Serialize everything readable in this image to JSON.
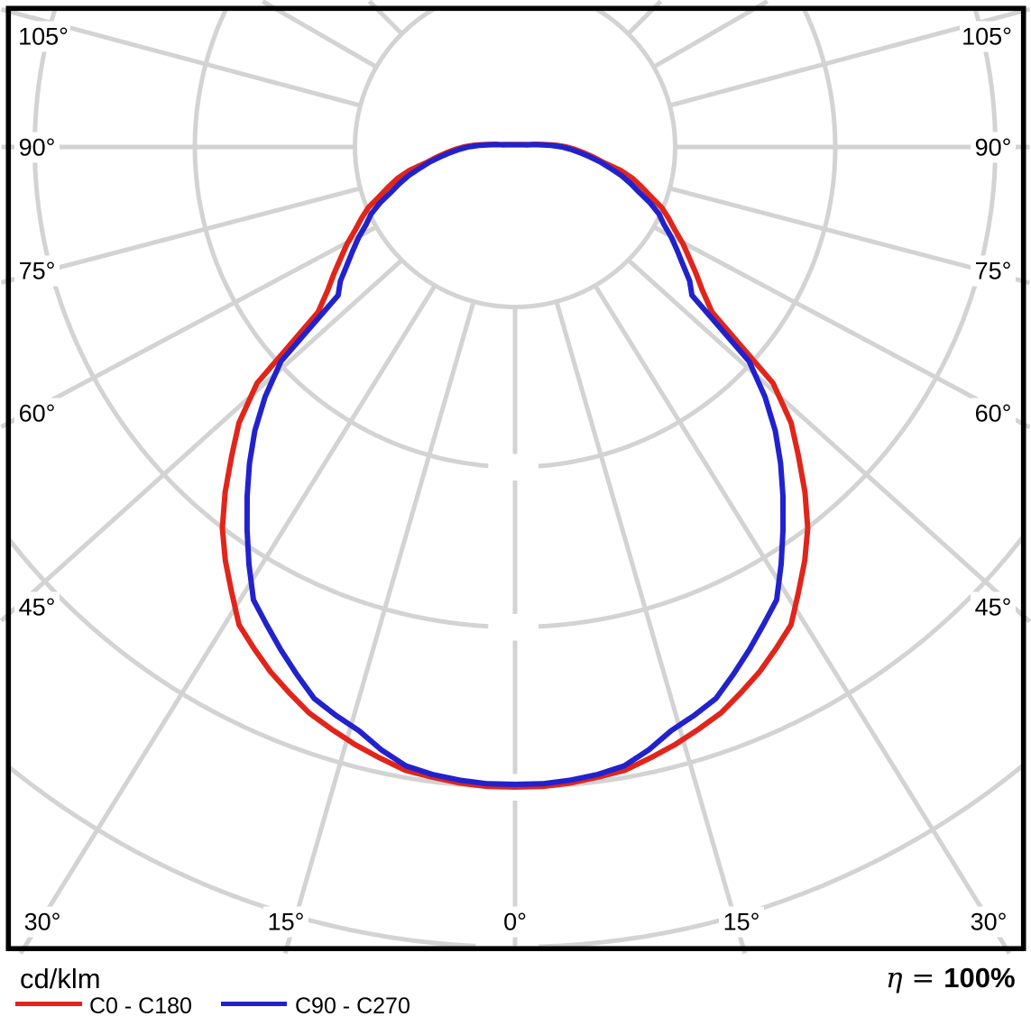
{
  "chart_data": {
    "type": "polar",
    "unit_label": "cd/klm",
    "efficiency": "η = 100%",
    "gamma_start_deg": 0,
    "gamma_end_deg": 102.5,
    "gamma_step_deg": 2.5,
    "symmetric": true,
    "grid": {
      "ray_step_deg": 15,
      "ring_count": 5,
      "color": "#d3d3d3"
    },
    "axis_labels": {
      "left": [
        "105°",
        "90°",
        "75°",
        "60°",
        "45°"
      ],
      "right": [
        "105°",
        "90°",
        "75°",
        "60°",
        "45°"
      ],
      "bottom": [
        "30°",
        "15°",
        "0°",
        "15°",
        "30°"
      ]
    },
    "series": [
      {
        "name": "C0 - C180",
        "color": "#e1251b",
        "values_unit": "grid rings (no numeric ring scale shown)",
        "values_rings": [
          4.0,
          4.0,
          3.989,
          3.972,
          3.955,
          3.91,
          3.865,
          3.814,
          3.763,
          3.69,
          3.617,
          3.532,
          3.448,
          3.296,
          3.155,
          3.003,
          2.817,
          2.62,
          2.439,
          2.186,
          1.606,
          1.476,
          1.38,
          1.29,
          1.211,
          1.127,
          1.059,
          0.992,
          0.901,
          0.828,
          0.761,
          0.676,
          0.563,
          0.496,
          0.434,
          0.377,
          0.321,
          0.254,
          0.18,
          0.13,
          0.085,
          0.073
        ]
      },
      {
        "name": "C90 - C270",
        "color": "#2222cd",
        "values_unit": "grid rings (no numeric ring scale shown)",
        "values_rings": [
          3.983,
          3.983,
          3.972,
          3.955,
          3.927,
          3.859,
          3.775,
          3.724,
          3.668,
          3.566,
          3.465,
          3.363,
          3.268,
          3.093,
          2.918,
          2.749,
          2.58,
          2.406,
          2.208,
          1.983,
          1.442,
          1.375,
          1.279,
          1.2,
          1.127,
          1.048,
          0.992,
          0.913,
          0.823,
          0.755,
          0.687,
          0.608,
          0.541,
          0.468,
          0.406,
          0.349,
          0.293,
          0.225,
          0.158,
          0.113,
          0.073,
          0.062
        ]
      }
    ]
  },
  "legend": {
    "unit_label": "cd/klm",
    "efficiency_eta": "η",
    "efficiency_rest": " = ",
    "efficiency_value": "100%",
    "items": [
      {
        "label": "C0 - C180",
        "color": "#e1251b"
      },
      {
        "label": "C90 - C270",
        "color": "#2222cd"
      }
    ]
  }
}
